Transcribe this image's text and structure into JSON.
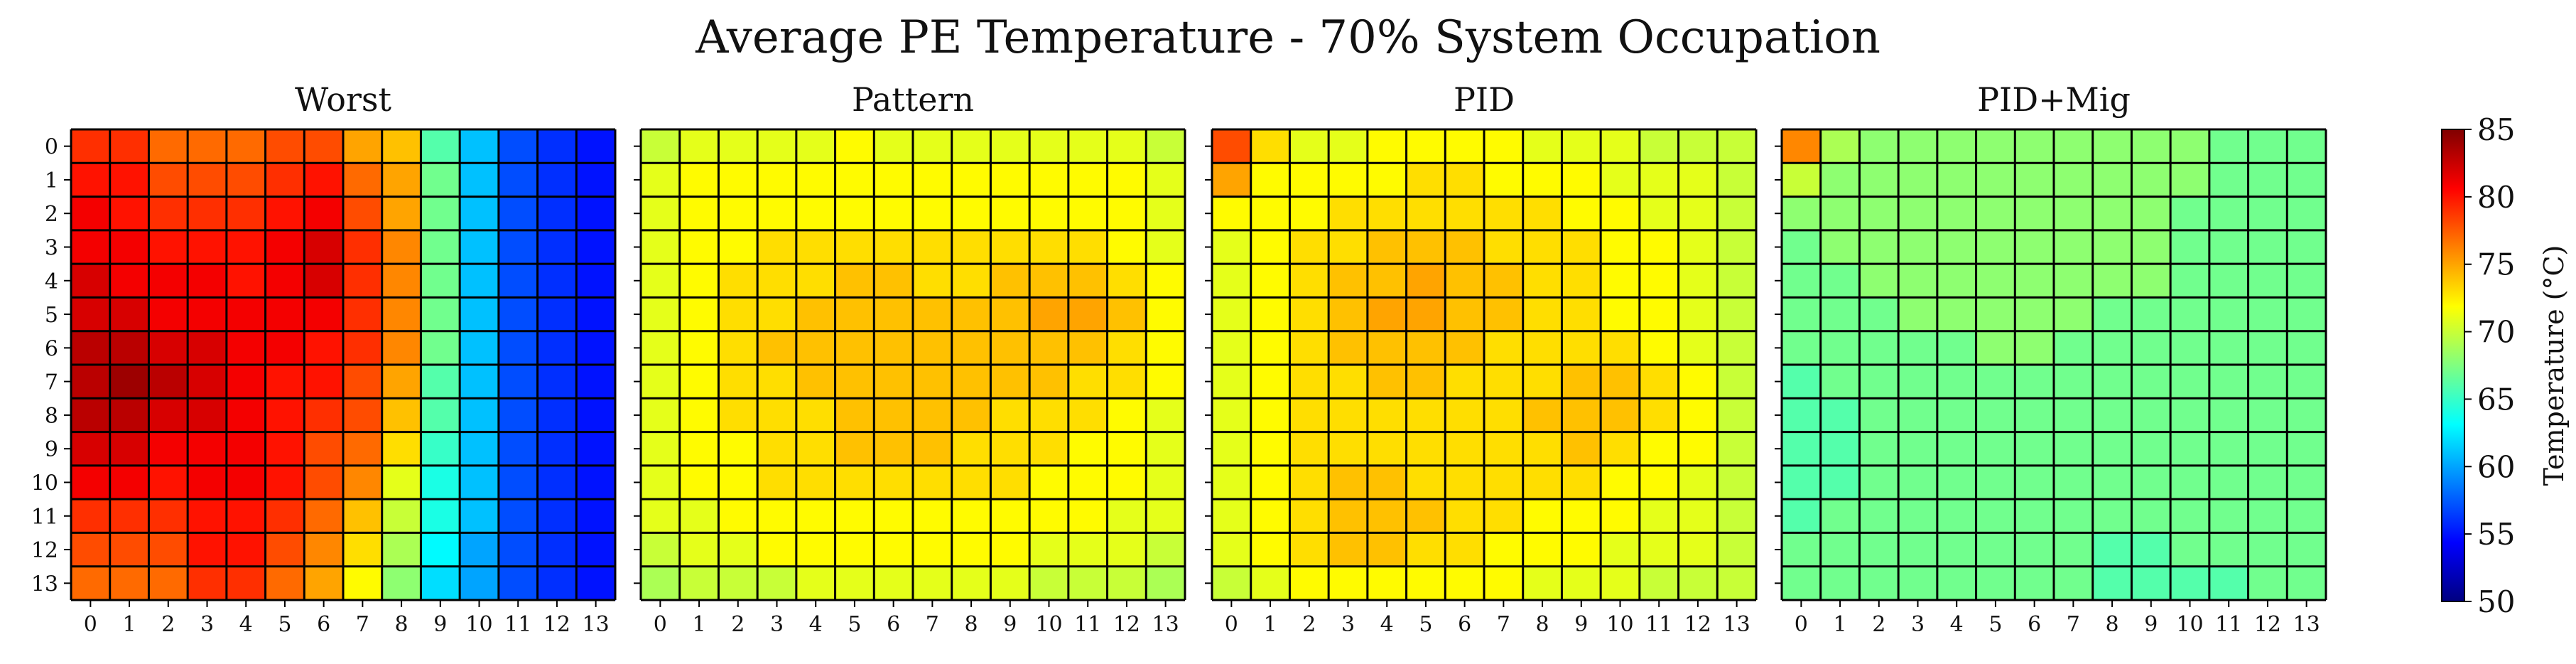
{
  "figure": {
    "title": "Average PE Temperature - 70% System Occupation"
  },
  "colorbar": {
    "label": "Temperature (°C)",
    "min": 50,
    "max": 85,
    "ticks": [
      50,
      55,
      60,
      65,
      70,
      75,
      80,
      85
    ],
    "colormap": "jet"
  },
  "chart_data": [
    {
      "type": "heatmap",
      "title": "Worst",
      "x": [
        0,
        1,
        2,
        3,
        4,
        5,
        6,
        7,
        8,
        9,
        10,
        11,
        12,
        13
      ],
      "y": [
        0,
        1,
        2,
        3,
        4,
        5,
        6,
        7,
        8,
        9,
        10,
        11,
        12,
        13
      ],
      "vmin": 50,
      "vmax": 85,
      "values": [
        [
          79,
          79,
          77,
          77,
          77,
          78,
          78,
          75,
          74,
          66,
          61,
          57,
          56,
          55
        ],
        [
          80,
          80,
          78,
          78,
          78,
          79,
          80,
          77,
          75,
          67,
          61,
          57,
          56,
          55
        ],
        [
          81,
          80,
          79,
          79,
          79,
          80,
          81,
          78,
          75,
          67,
          61,
          57,
          56,
          55
        ],
        [
          81,
          81,
          80,
          80,
          80,
          81,
          82,
          79,
          76,
          67,
          61,
          57,
          56,
          55
        ],
        [
          82,
          81,
          81,
          81,
          80,
          81,
          82,
          79,
          76,
          67,
          61,
          57,
          56,
          55
        ],
        [
          82,
          82,
          81,
          81,
          81,
          81,
          81,
          79,
          76,
          67,
          61,
          57,
          56,
          55
        ],
        [
          83,
          83,
          82,
          82,
          81,
          81,
          80,
          79,
          76,
          67,
          61,
          57,
          56,
          55
        ],
        [
          83,
          84,
          83,
          82,
          81,
          80,
          80,
          78,
          75,
          66,
          61,
          57,
          56,
          55
        ],
        [
          83,
          83,
          82,
          82,
          81,
          80,
          79,
          78,
          74,
          66,
          61,
          57,
          56,
          55
        ],
        [
          82,
          82,
          81,
          81,
          81,
          80,
          78,
          77,
          73,
          65,
          61,
          57,
          56,
          55
        ],
        [
          81,
          81,
          80,
          81,
          81,
          80,
          78,
          76,
          71,
          64,
          61,
          57,
          56,
          55
        ],
        [
          79,
          79,
          79,
          80,
          80,
          79,
          77,
          74,
          70,
          64,
          61,
          57,
          56,
          55
        ],
        [
          78,
          78,
          78,
          80,
          80,
          78,
          76,
          73,
          69,
          63,
          60,
          57,
          56,
          55
        ],
        [
          77,
          77,
          77,
          79,
          79,
          77,
          75,
          72,
          68,
          62,
          60,
          57,
          56,
          55
        ]
      ]
    },
    {
      "type": "heatmap",
      "title": "Pattern",
      "x": [
        0,
        1,
        2,
        3,
        4,
        5,
        6,
        7,
        8,
        9,
        10,
        11,
        12,
        13
      ],
      "y": [
        0,
        1,
        2,
        3,
        4,
        5,
        6,
        7,
        8,
        9,
        10,
        11,
        12,
        13
      ],
      "vmin": 50,
      "vmax": 85,
      "values": [
        [
          70,
          71,
          71,
          71,
          71,
          72,
          71,
          71,
          71,
          71,
          71,
          71,
          71,
          70
        ],
        [
          71,
          72,
          72,
          72,
          72,
          72,
          72,
          72,
          72,
          72,
          72,
          72,
          72,
          71
        ],
        [
          71,
          72,
          72,
          72,
          72,
          72,
          72,
          72,
          72,
          72,
          72,
          72,
          72,
          71
        ],
        [
          71,
          72,
          72,
          73,
          73,
          73,
          73,
          73,
          73,
          73,
          73,
          73,
          72,
          71
        ],
        [
          71,
          72,
          73,
          73,
          73,
          74,
          74,
          73,
          73,
          74,
          74,
          74,
          73,
          72
        ],
        [
          71,
          72,
          73,
          73,
          74,
          74,
          74,
          74,
          74,
          74,
          75,
          75,
          74,
          72
        ],
        [
          71,
          72,
          73,
          74,
          74,
          74,
          74,
          74,
          74,
          74,
          74,
          74,
          73,
          72
        ],
        [
          71,
          72,
          73,
          73,
          74,
          74,
          74,
          74,
          74,
          74,
          74,
          73,
          73,
          72
        ],
        [
          71,
          72,
          73,
          73,
          73,
          74,
          74,
          74,
          74,
          73,
          73,
          73,
          72,
          71
        ],
        [
          71,
          72,
          72,
          73,
          73,
          74,
          74,
          74,
          73,
          73,
          73,
          72,
          72,
          71
        ],
        [
          71,
          72,
          72,
          73,
          73,
          73,
          73,
          73,
          73,
          73,
          72,
          72,
          72,
          71
        ],
        [
          71,
          71,
          72,
          72,
          72,
          72,
          72,
          72,
          72,
          72,
          72,
          72,
          71,
          71
        ],
        [
          70,
          71,
          71,
          72,
          72,
          72,
          72,
          72,
          72,
          72,
          71,
          71,
          71,
          70
        ],
        [
          69,
          70,
          70,
          70,
          71,
          71,
          71,
          71,
          71,
          71,
          70,
          70,
          70,
          69
        ]
      ]
    },
    {
      "type": "heatmap",
      "title": "PID",
      "x": [
        0,
        1,
        2,
        3,
        4,
        5,
        6,
        7,
        8,
        9,
        10,
        11,
        12,
        13
      ],
      "y": [
        0,
        1,
        2,
        3,
        4,
        5,
        6,
        7,
        8,
        9,
        10,
        11,
        12,
        13
      ],
      "vmin": 50,
      "vmax": 85,
      "values": [
        [
          78,
          73,
          71,
          71,
          72,
          72,
          72,
          72,
          71,
          71,
          71,
          70,
          70,
          70
        ],
        [
          75,
          72,
          72,
          72,
          72,
          73,
          73,
          72,
          72,
          72,
          71,
          71,
          71,
          70
        ],
        [
          72,
          72,
          72,
          73,
          73,
          73,
          73,
          73,
          73,
          72,
          72,
          71,
          71,
          70
        ],
        [
          71,
          72,
          73,
          73,
          74,
          74,
          74,
          73,
          73,
          73,
          72,
          72,
          71,
          70
        ],
        [
          71,
          72,
          73,
          74,
          74,
          75,
          74,
          74,
          73,
          73,
          72,
          72,
          71,
          70
        ],
        [
          71,
          72,
          73,
          74,
          75,
          75,
          74,
          74,
          73,
          73,
          72,
          72,
          71,
          70
        ],
        [
          71,
          72,
          73,
          74,
          74,
          74,
          74,
          73,
          73,
          73,
          73,
          72,
          71,
          70
        ],
        [
          71,
          72,
          73,
          73,
          74,
          74,
          73,
          73,
          73,
          74,
          74,
          73,
          72,
          70
        ],
        [
          71,
          72,
          73,
          73,
          73,
          73,
          73,
          73,
          74,
          74,
          74,
          73,
          72,
          70
        ],
        [
          71,
          72,
          73,
          73,
          73,
          73,
          73,
          73,
          73,
          74,
          73,
          72,
          72,
          70
        ],
        [
          71,
          72,
          73,
          74,
          74,
          73,
          73,
          73,
          73,
          73,
          72,
          72,
          71,
          70
        ],
        [
          71,
          72,
          73,
          74,
          74,
          74,
          73,
          73,
          72,
          72,
          72,
          71,
          71,
          70
        ],
        [
          71,
          72,
          73,
          74,
          74,
          73,
          73,
          72,
          72,
          72,
          71,
          71,
          71,
          70
        ],
        [
          70,
          71,
          72,
          72,
          72,
          72,
          72,
          72,
          71,
          71,
          71,
          70,
          70,
          70
        ]
      ]
    },
    {
      "type": "heatmap",
      "title": "PID+Mig",
      "x": [
        0,
        1,
        2,
        3,
        4,
        5,
        6,
        7,
        8,
        9,
        10,
        11,
        12,
        13
      ],
      "y": [
        0,
        1,
        2,
        3,
        4,
        5,
        6,
        7,
        8,
        9,
        10,
        11,
        12,
        13
      ],
      "vmin": 50,
      "vmax": 85,
      "values": [
        [
          76,
          69,
          68,
          68,
          68,
          68,
          68,
          68,
          68,
          68,
          68,
          67,
          67,
          67
        ],
        [
          70,
          68,
          68,
          68,
          68,
          68,
          68,
          68,
          68,
          68,
          68,
          67,
          67,
          67
        ],
        [
          68,
          68,
          68,
          68,
          68,
          68,
          68,
          68,
          68,
          68,
          67,
          67,
          67,
          67
        ],
        [
          67,
          68,
          68,
          68,
          68,
          68,
          68,
          68,
          68,
          68,
          67,
          67,
          67,
          67
        ],
        [
          67,
          67,
          68,
          68,
          68,
          68,
          68,
          68,
          68,
          68,
          67,
          67,
          67,
          67
        ],
        [
          67,
          67,
          67,
          68,
          68,
          68,
          68,
          68,
          67,
          67,
          67,
          67,
          67,
          67
        ],
        [
          67,
          67,
          67,
          67,
          67,
          68,
          68,
          67,
          67,
          67,
          67,
          67,
          67,
          67
        ],
        [
          66,
          67,
          67,
          67,
          67,
          67,
          67,
          67,
          67,
          67,
          67,
          67,
          67,
          67
        ],
        [
          66,
          66,
          67,
          67,
          67,
          67,
          67,
          67,
          67,
          67,
          67,
          67,
          67,
          67
        ],
        [
          66,
          66,
          67,
          67,
          67,
          67,
          67,
          67,
          67,
          67,
          67,
          67,
          67,
          67
        ],
        [
          66,
          66,
          67,
          67,
          67,
          67,
          67,
          67,
          67,
          67,
          67,
          67,
          67,
          67
        ],
        [
          66,
          67,
          67,
          67,
          67,
          67,
          67,
          67,
          67,
          67,
          67,
          67,
          67,
          67
        ],
        [
          67,
          67,
          67,
          67,
          67,
          67,
          67,
          67,
          66,
          66,
          67,
          67,
          67,
          67
        ],
        [
          67,
          67,
          67,
          67,
          67,
          67,
          67,
          67,
          66,
          66,
          66,
          66,
          67,
          67
        ]
      ]
    }
  ]
}
